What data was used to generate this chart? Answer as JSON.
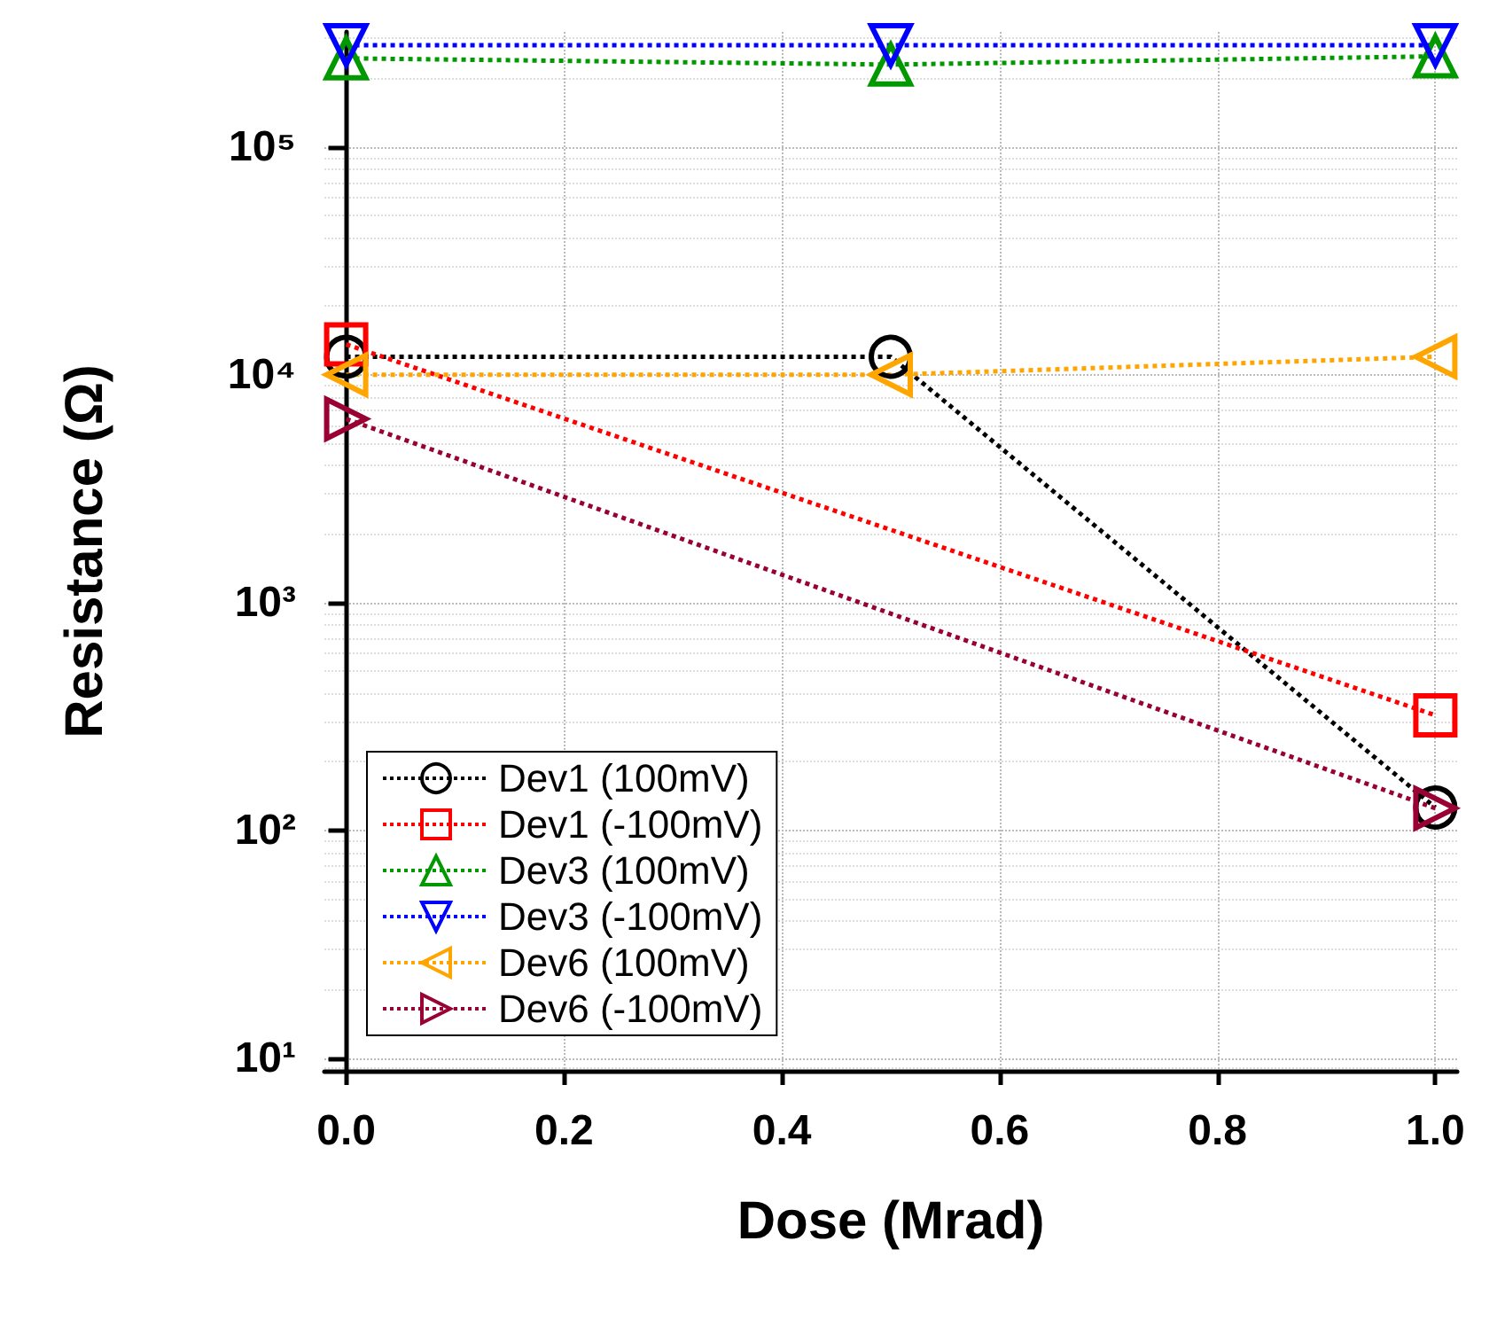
{
  "chart_data": {
    "type": "line",
    "xlabel": "Dose (Mrad)",
    "ylabel": "Resistance (Ω)",
    "log": "y",
    "xlim": [
      -0.02,
      1.02
    ],
    "xticks": [
      {
        "value": 0,
        "label": "0.0"
      },
      {
        "value": 0.2,
        "label": "0.2"
      },
      {
        "value": 0.4,
        "label": "0.4"
      },
      {
        "value": 0.6,
        "label": "0.6"
      },
      {
        "value": 0.8,
        "label": "0.8"
      },
      {
        "value": 1,
        "label": "1.0"
      }
    ],
    "ylim": [
      8.8,
      320000
    ],
    "yticks": [
      {
        "value": 10,
        "label": "10¹"
      },
      {
        "value": 100,
        "label": "10²"
      },
      {
        "value": 1000,
        "label": "10³"
      },
      {
        "value": 10000,
        "label": "10⁴"
      },
      {
        "value": 100000,
        "label": "10⁵"
      }
    ],
    "grid": true,
    "legend": "bottom left",
    "line_style": "dotted",
    "x": [
      0,
      0.5,
      1
    ],
    "series": [
      {
        "name": "Dev1 (100mV)",
        "color": "#000000",
        "marker": "circle",
        "values": [
          12000,
          12000,
          126
        ]
      },
      {
        "name": "Dev1 (-100mV)",
        "color": "#ff0000",
        "marker": "square",
        "values": [
          13600,
          null,
          320
        ]
      },
      {
        "name": "Dev3 (100mV)",
        "color": "#009900",
        "marker": "triangle",
        "values": [
          245000,
          230000,
          250000
        ]
      },
      {
        "name": "Dev3 (-100mV)",
        "color": "#0000ff",
        "marker": "triangle-down",
        "values": [
          280000,
          280000,
          280000
        ]
      },
      {
        "name": "Dev6 (100mV)",
        "color": "#ffa500",
        "marker": "triangle-left",
        "values": [
          10000,
          10000,
          12000
        ]
      },
      {
        "name": "Dev6 (-100mV)",
        "color": "#990033",
        "marker": "triangle-right",
        "values": [
          6400,
          null,
          125
        ]
      }
    ]
  }
}
